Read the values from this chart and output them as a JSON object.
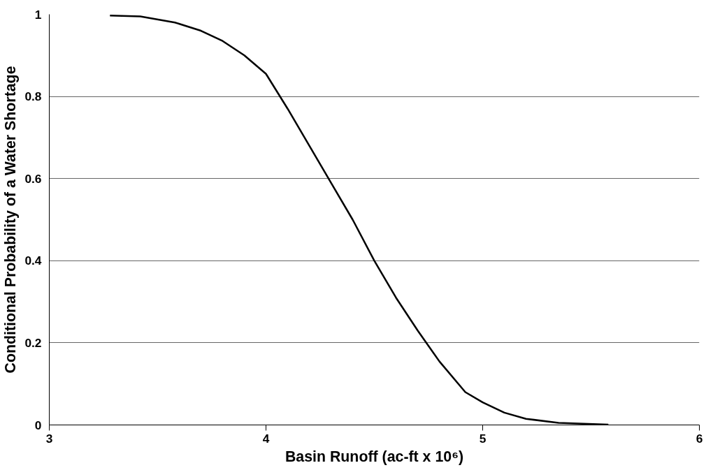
{
  "chart_data": {
    "type": "line",
    "xlabel": "Basin Runoff (ac-ft x 10⁶)",
    "ylabel": "Conditional Probability of a Water Shortage",
    "x": [
      3.28,
      3.42,
      3.58,
      3.7,
      3.8,
      3.9,
      4.0,
      4.1,
      4.2,
      4.3,
      4.4,
      4.5,
      4.6,
      4.7,
      4.8,
      4.92,
      5.0,
      5.1,
      5.2,
      5.35,
      5.58
    ],
    "series": [
      {
        "color": "#000000",
        "values": [
          0.997,
          0.995,
          0.98,
          0.96,
          0.935,
          0.9,
          0.855,
          0.77,
          0.68,
          0.59,
          0.5,
          0.4,
          0.31,
          0.23,
          0.155,
          0.08,
          0.055,
          0.03,
          0.015,
          0.005,
          0.001
        ]
      }
    ],
    "xlim": [
      3,
      6
    ],
    "ylim": [
      0,
      1
    ],
    "xticks": [
      3,
      4,
      5,
      6
    ],
    "yticks": [
      0,
      0.2,
      0.4,
      0.6,
      0.8,
      1
    ],
    "grid": "y",
    "marker": "none",
    "line_style": "solid"
  }
}
